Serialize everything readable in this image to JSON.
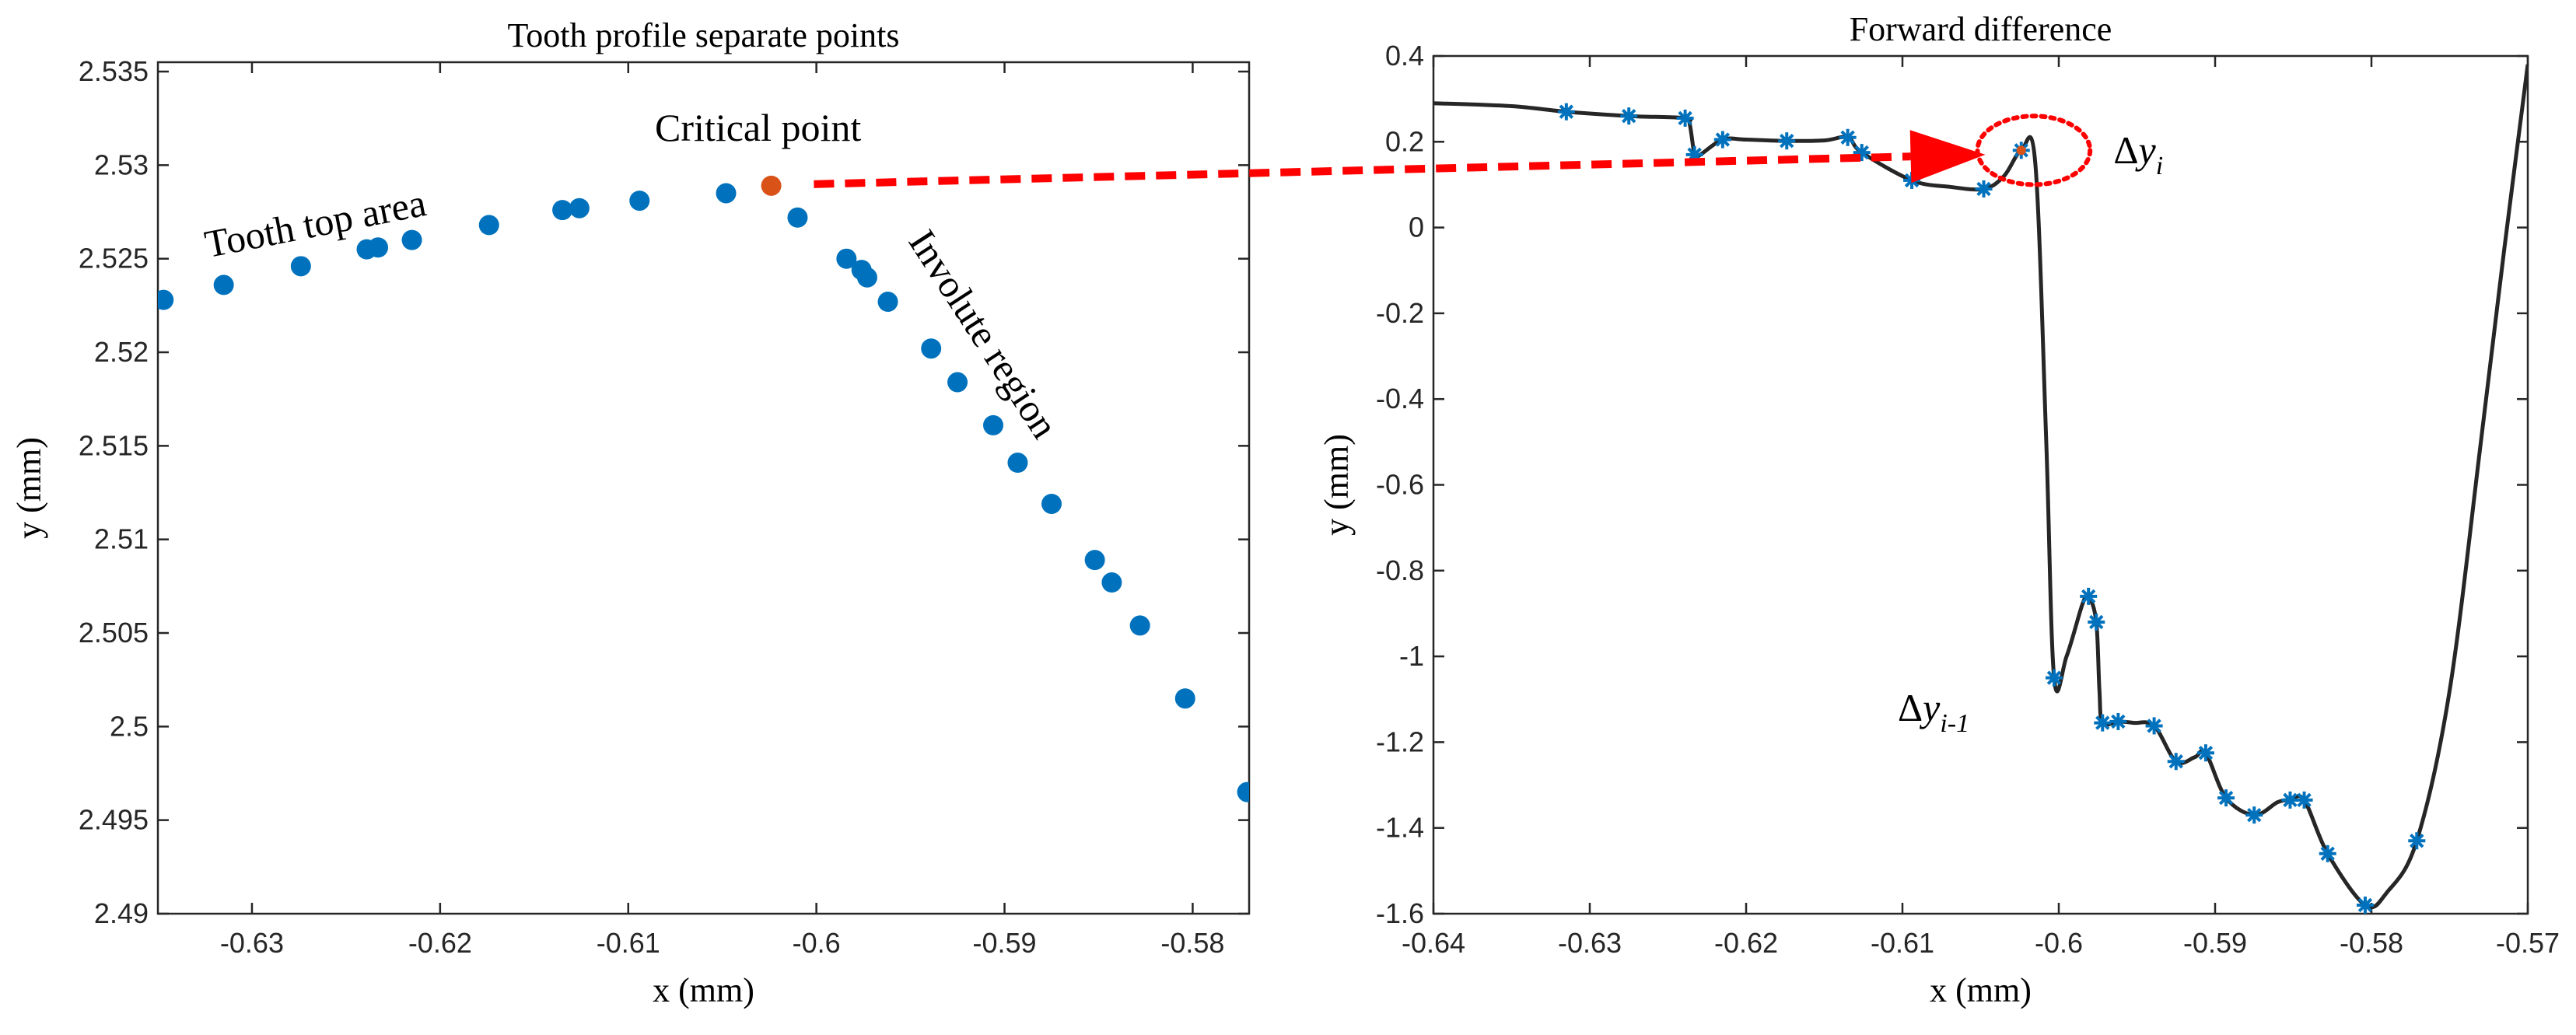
{
  "chart_data": [
    {
      "type": "scatter",
      "title": "Tooth profile separate points",
      "xlabel": "x (mm)",
      "ylabel": "y (mm)",
      "xlim": [
        -0.635,
        -0.577
      ],
      "ylim": [
        2.49,
        2.5355
      ],
      "xticks": [
        -0.63,
        -0.62,
        -0.61,
        -0.6,
        -0.59,
        -0.58
      ],
      "xtick_labels": [
        "-0.63",
        "-0.62",
        "-0.61",
        "-0.6",
        "-0.59",
        "-0.58"
      ],
      "yticks": [
        2.49,
        2.495,
        2.5,
        2.505,
        2.51,
        2.515,
        2.52,
        2.525,
        2.53,
        2.535
      ],
      "ytick_labels": [
        "2.49",
        "2.495",
        "2.5",
        "2.505",
        "2.51",
        "2.515",
        "2.52",
        "2.525",
        "2.53",
        "2.535"
      ],
      "grid": false,
      "series": [
        {
          "color": "#0072BD",
          "points": [
            [
              -0.6347,
              2.5228
            ],
            [
              -0.6315,
              2.5236
            ],
            [
              -0.6274,
              2.5246
            ],
            [
              -0.6239,
              2.5255
            ],
            [
              -0.6233,
              2.5256
            ],
            [
              -0.6215,
              2.526
            ],
            [
              -0.6174,
              2.5268
            ],
            [
              -0.6135,
              2.5276
            ],
            [
              -0.6126,
              2.5277
            ],
            [
              -0.6094,
              2.5281
            ],
            [
              -0.6048,
              2.5285
            ],
            [
              -0.601,
              2.5272
            ],
            [
              -0.5984,
              2.525
            ],
            [
              -0.5976,
              2.5244
            ],
            [
              -0.5973,
              2.524
            ],
            [
              -0.5962,
              2.5227
            ],
            [
              -0.5939,
              2.5202
            ],
            [
              -0.5925,
              2.5184
            ],
            [
              -0.5906,
              2.5161
            ],
            [
              -0.5893,
              2.5141
            ],
            [
              -0.5875,
              2.5119
            ],
            [
              -0.5852,
              2.5089
            ],
            [
              -0.5843,
              2.5077
            ],
            [
              -0.5828,
              2.5054
            ],
            [
              -0.5804,
              2.5015
            ],
            [
              -0.5771,
              2.4965
            ]
          ]
        },
        {
          "color": "#D95319",
          "points": [
            [
              -0.6024,
              2.5289
            ]
          ]
        }
      ],
      "annotations": [
        {
          "text": "Critical point",
          "x": -0.6031,
          "y": 2.5313
        },
        {
          "text": "Tooth top area",
          "x": -0.6265,
          "y": 2.5262,
          "rotate": -11
        },
        {
          "text": "Involute region",
          "x": -0.5917,
          "y": 2.5206,
          "rotate": 57
        }
      ]
    },
    {
      "type": "line",
      "title": "Forward difference",
      "xlabel": "x (mm)",
      "ylabel": "y (mm)",
      "xlim": [
        -0.64,
        -0.57
      ],
      "ylim": [
        -1.6,
        0.4
      ],
      "xticks": [
        -0.64,
        -0.63,
        -0.62,
        -0.61,
        -0.6,
        -0.59,
        -0.58,
        -0.57
      ],
      "xtick_labels": [
        "-0.64",
        "-0.63",
        "-0.62",
        "-0.61",
        "-0.6",
        "-0.59",
        "-0.58",
        "-0.57"
      ],
      "yticks": [
        -1.6,
        -1.4,
        -1.2,
        -1,
        -0.8,
        -0.6,
        -0.4,
        -0.2,
        0,
        0.2,
        0.4
      ],
      "ytick_labels": [
        "-1.6",
        "-1.4",
        "-1.2",
        "-1",
        "-0.8",
        "-0.6",
        "-0.4",
        "-0.2",
        "0",
        "0.2",
        "0.4"
      ],
      "grid": false,
      "line_color": "#262626",
      "marker_color": "#0072BD",
      "line": [
        [
          -0.64,
          0.29
        ],
        [
          -0.635,
          0.283
        ],
        [
          -0.6315,
          0.27
        ],
        [
          -0.6275,
          0.26
        ],
        [
          -0.6239,
          0.255
        ],
        [
          -0.6236,
          0.24
        ],
        [
          -0.6233,
          0.17
        ],
        [
          -0.623,
          0.168
        ],
        [
          -0.6215,
          0.205
        ],
        [
          -0.62,
          0.205
        ],
        [
          -0.6174,
          0.202
        ],
        [
          -0.615,
          0.203
        ],
        [
          -0.6135,
          0.21
        ],
        [
          -0.6126,
          0.175
        ],
        [
          -0.6094,
          0.11
        ],
        [
          -0.607,
          0.095
        ],
        [
          -0.6048,
          0.09
        ],
        [
          -0.6035,
          0.12
        ],
        [
          -0.6024,
          0.18
        ],
        [
          -0.6015,
          0.15
        ],
        [
          -0.6008,
          -0.5
        ],
        [
          -0.6003,
          -1.05
        ],
        [
          -0.5995,
          -1.0
        ],
        [
          -0.5985,
          -0.88
        ],
        [
          -0.5981,
          -0.86
        ],
        [
          -0.5976,
          -0.92
        ],
        [
          -0.5974,
          -1.08
        ],
        [
          -0.5972,
          -1.155
        ],
        [
          -0.5962,
          -1.152
        ],
        [
          -0.5952,
          -1.155
        ],
        [
          -0.5939,
          -1.162
        ],
        [
          -0.5925,
          -1.245
        ],
        [
          -0.5913,
          -1.235
        ],
        [
          -0.5906,
          -1.225
        ],
        [
          -0.5893,
          -1.33
        ],
        [
          -0.5875,
          -1.37
        ],
        [
          -0.586,
          -1.34
        ],
        [
          -0.5852,
          -1.335
        ],
        [
          -0.5843,
          -1.335
        ],
        [
          -0.5828,
          -1.46
        ],
        [
          -0.5804,
          -1.58
        ],
        [
          -0.579,
          -1.55
        ],
        [
          -0.5771,
          -1.43
        ],
        [
          -0.575,
          -1.08
        ],
        [
          -0.573,
          -0.5
        ],
        [
          -0.5715,
          -0.05
        ],
        [
          -0.57,
          0.38
        ]
      ],
      "markers": [
        [
          -0.6315,
          0.27
        ],
        [
          -0.6275,
          0.26
        ],
        [
          -0.6239,
          0.255
        ],
        [
          -0.6233,
          0.17
        ],
        [
          -0.6215,
          0.205
        ],
        [
          -0.6174,
          0.202
        ],
        [
          -0.6135,
          0.21
        ],
        [
          -0.6126,
          0.175
        ],
        [
          -0.6094,
          0.11
        ],
        [
          -0.6048,
          0.09
        ],
        [
          -0.6024,
          0.18
        ],
        [
          -0.6003,
          -1.05
        ],
        [
          -0.5981,
          -0.86
        ],
        [
          -0.5976,
          -0.92
        ],
        [
          -0.5972,
          -1.155
        ],
        [
          -0.5962,
          -1.152
        ],
        [
          -0.5939,
          -1.162
        ],
        [
          -0.5925,
          -1.245
        ],
        [
          -0.5906,
          -1.225
        ],
        [
          -0.5893,
          -1.33
        ],
        [
          -0.5875,
          -1.37
        ],
        [
          -0.5852,
          -1.335
        ],
        [
          -0.5843,
          -1.335
        ],
        [
          -0.5828,
          -1.46
        ],
        [
          -0.5804,
          -1.58
        ],
        [
          -0.5771,
          -1.43
        ]
      ],
      "highlight_marker": {
        "x": -0.6024,
        "y": 0.18,
        "color": "#D95319"
      },
      "ellipse": {
        "cx": -0.6016,
        "cy": 0.18,
        "rx": 0.0036,
        "ry": 0.08,
        "color": "#FF0000"
      },
      "annotations": [
        {
          "delta": "Δ",
          "var": "y",
          "sub": "i",
          "x": -0.5965,
          "y": 0.15
        },
        {
          "delta": "Δ",
          "var": "y",
          "sub": "i-1",
          "x": -0.6103,
          "y": -1.15
        }
      ]
    }
  ],
  "connector": {
    "color": "#FF0000",
    "from_panel": 0,
    "from": [
      -0.6022,
      2.5289
    ],
    "to_panel": 1,
    "to": [
      -0.6047,
      0.17
    ]
  }
}
